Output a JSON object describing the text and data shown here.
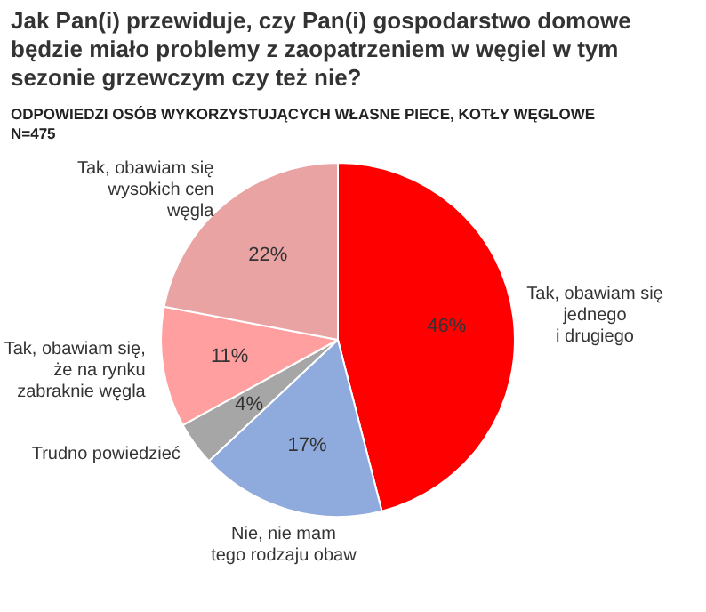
{
  "chart_data": {
    "type": "pie",
    "title": "Jak Pan(i) przewiduje, czy Pan(i) gospodarstwo domowe będzie miało problemy z zaopatrzeniem w węgiel w tym sezonie grzewczym czy też nie?",
    "subtitle": "ODPOWIEDZI OSÓB WYKORZYSTUJĄCYCH WŁASNE PIECE, KOTŁY WĘGLOWE",
    "annotations": [
      "N=475"
    ],
    "categories": [
      "Tak, obawiam się\njednego\ni drugiego",
      "Nie, nie mam\ntego rodzaju obaw",
      "Trudno powiedzieć",
      "Tak, obawiam się,\nże na rynku\nzabraknie węgla",
      "Tak, obawiam się\nwysokich cen\nwęgla"
    ],
    "values": [
      46,
      17,
      4,
      11,
      22
    ],
    "value_labels": [
      "46%",
      "17%",
      "4%",
      "11%",
      "22%"
    ],
    "colors": [
      "#ff0000",
      "#8faadc",
      "#a6a6a6",
      "#ff9f9f",
      "#e9a3a3"
    ],
    "legend": false
  }
}
